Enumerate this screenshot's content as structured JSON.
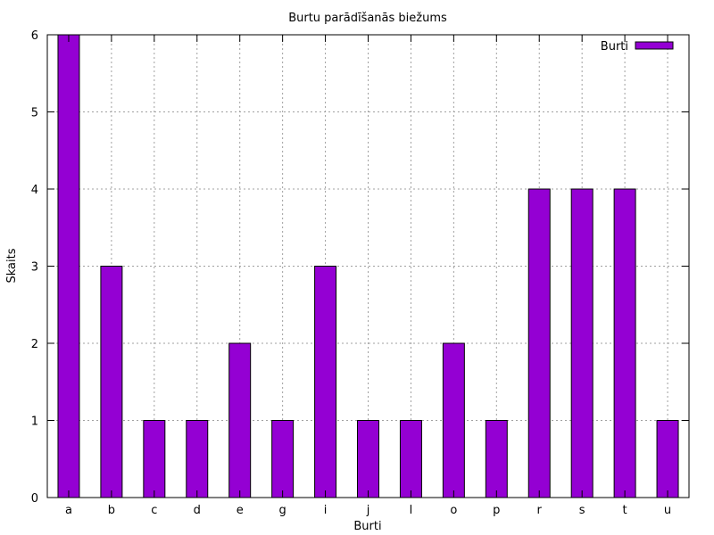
{
  "chart_data": {
    "type": "bar",
    "title": "Burtu parādīšanās biežums",
    "xlabel": "Burti",
    "ylabel": "Skaits",
    "categories": [
      "a",
      "b",
      "c",
      "d",
      "e",
      "g",
      "i",
      "j",
      "l",
      "o",
      "p",
      "r",
      "s",
      "t",
      "u"
    ],
    "series": [
      {
        "name": "Burti",
        "values": [
          6,
          3,
          1,
          1,
          2,
          1,
          3,
          1,
          1,
          2,
          1,
          4,
          4,
          4,
          1
        ]
      }
    ],
    "ylim": [
      0,
      6
    ],
    "yticks": [
      "0",
      "1",
      "2",
      "3",
      "4",
      "5",
      "6"
    ],
    "grid": true,
    "legend_position": "top-right",
    "bar_color": "#9400d3"
  }
}
